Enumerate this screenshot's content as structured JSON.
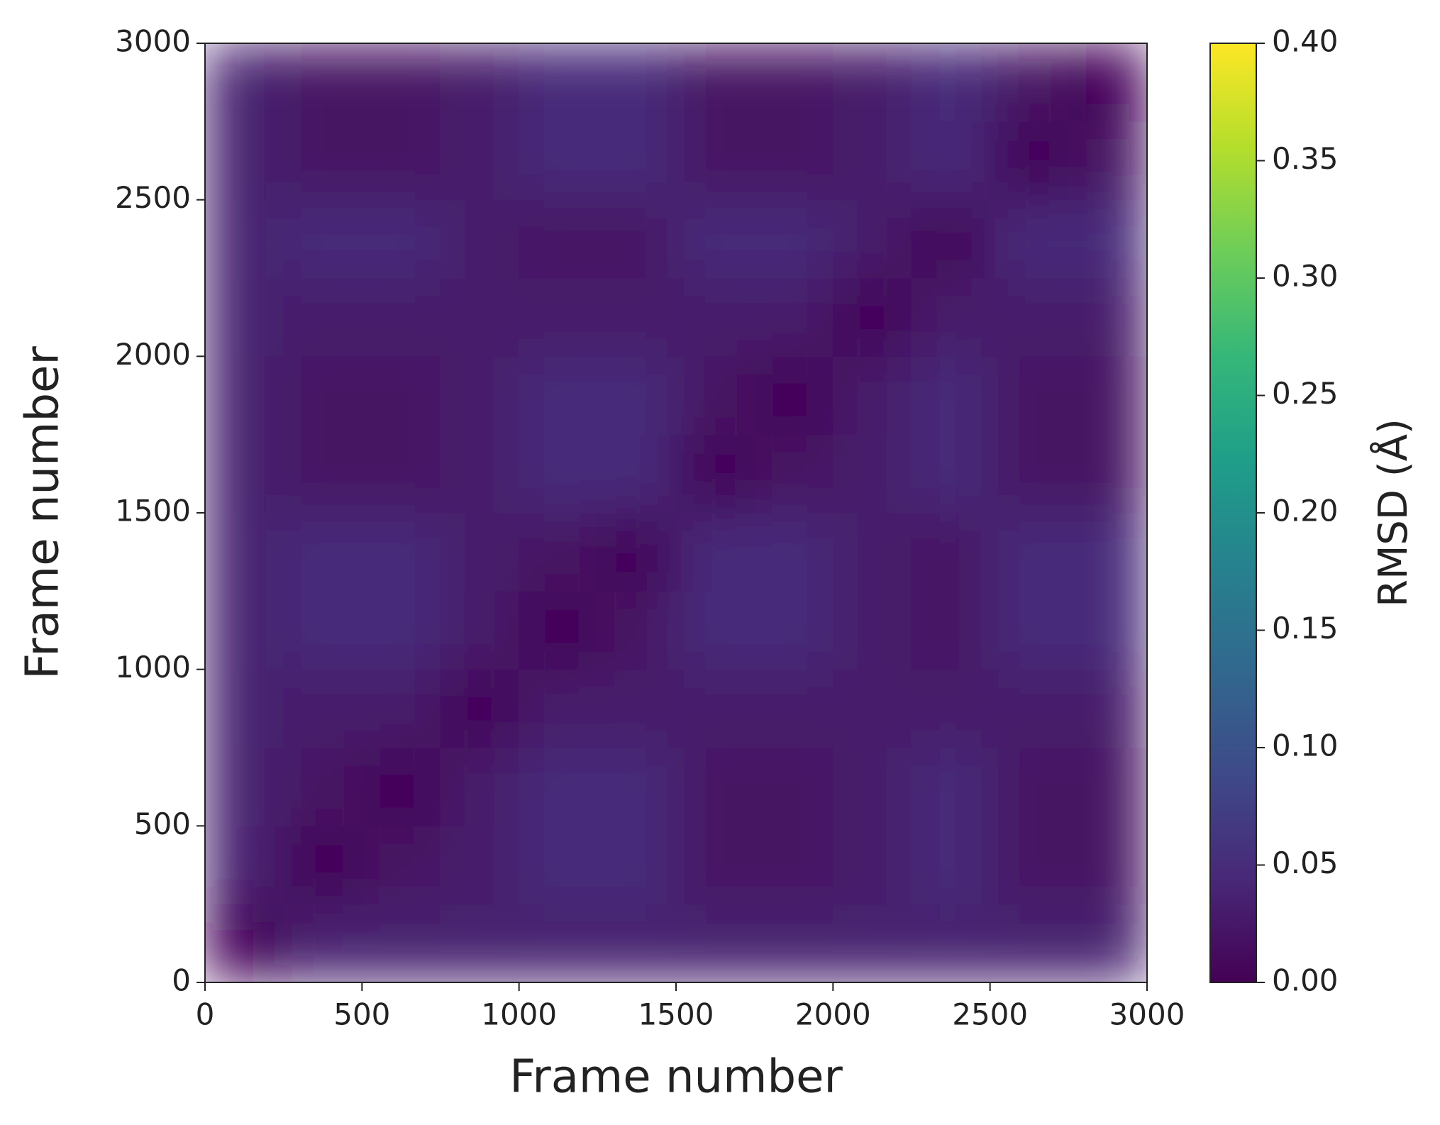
{
  "chart_data": {
    "type": "heatmap",
    "xlabel": "Frame number",
    "ylabel": "Frame number",
    "colorbar_label": "RMSD (Å)",
    "colormap": "viridis",
    "x": [
      125,
      375,
      625,
      875,
      1125,
      1375,
      1625,
      1875,
      2125,
      2375,
      2625,
      2875
    ],
    "y": [
      125,
      375,
      625,
      875,
      1125,
      1375,
      1625,
      1875,
      2125,
      2375,
      2625,
      2875
    ],
    "z": [
      [
        0.005,
        0.035,
        0.035,
        0.035,
        0.035,
        0.035,
        0.035,
        0.035,
        0.035,
        0.035,
        0.035,
        0.035
      ],
      [
        0.035,
        0.005,
        0.02,
        0.028,
        0.05,
        0.05,
        0.02,
        0.02,
        0.028,
        0.05,
        0.02,
        0.02
      ],
      [
        0.035,
        0.02,
        0.005,
        0.028,
        0.05,
        0.05,
        0.02,
        0.02,
        0.028,
        0.05,
        0.02,
        0.02
      ],
      [
        0.035,
        0.028,
        0.028,
        0.005,
        0.028,
        0.028,
        0.028,
        0.028,
        0.028,
        0.028,
        0.028,
        0.028
      ],
      [
        0.035,
        0.05,
        0.05,
        0.028,
        0.005,
        0.02,
        0.05,
        0.05,
        0.028,
        0.02,
        0.05,
        0.05
      ],
      [
        0.035,
        0.05,
        0.05,
        0.028,
        0.02,
        0.005,
        0.05,
        0.05,
        0.028,
        0.02,
        0.05,
        0.05
      ],
      [
        0.035,
        0.02,
        0.02,
        0.028,
        0.05,
        0.05,
        0.005,
        0.02,
        0.028,
        0.05,
        0.02,
        0.02
      ],
      [
        0.035,
        0.02,
        0.02,
        0.028,
        0.05,
        0.05,
        0.02,
        0.005,
        0.028,
        0.05,
        0.02,
        0.02
      ],
      [
        0.035,
        0.028,
        0.028,
        0.028,
        0.028,
        0.028,
        0.028,
        0.028,
        0.005,
        0.028,
        0.028,
        0.028
      ],
      [
        0.035,
        0.05,
        0.05,
        0.028,
        0.02,
        0.02,
        0.05,
        0.05,
        0.028,
        0.005,
        0.05,
        0.05
      ],
      [
        0.035,
        0.02,
        0.02,
        0.028,
        0.05,
        0.05,
        0.02,
        0.02,
        0.028,
        0.05,
        0.005,
        0.02
      ],
      [
        0.035,
        0.02,
        0.02,
        0.028,
        0.05,
        0.05,
        0.02,
        0.02,
        0.028,
        0.05,
        0.02,
        0.005
      ]
    ],
    "xlim": [
      0,
      3000
    ],
    "ylim": [
      0,
      3000
    ],
    "xticks": [
      0,
      500,
      1000,
      1500,
      2000,
      2500,
      3000
    ],
    "yticks": [
      0,
      500,
      1000,
      1500,
      2000,
      2500,
      3000
    ],
    "clim": [
      0,
      0.4
    ],
    "cticks": [
      {
        "value": 0,
        "label": "0.00"
      },
      {
        "value": 0.05,
        "label": "0.05"
      },
      {
        "value": 0.1,
        "label": "0.10"
      },
      {
        "value": 0.15,
        "label": "0.15"
      },
      {
        "value": 0.2,
        "label": "0.20"
      },
      {
        "value": 0.25,
        "label": "0.25"
      },
      {
        "value": 0.3,
        "label": "0.30"
      },
      {
        "value": 0.35,
        "label": "0.35"
      },
      {
        "value": 0.4,
        "label": "0.40"
      }
    ]
  }
}
